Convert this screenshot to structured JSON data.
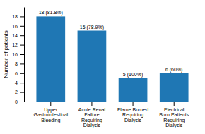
{
  "chart_data": {
    "type": "bar",
    "categories": [
      "Upper\nGastrointestinal\nBleeding",
      "Acute Renal\nFailure\nRequiring\nDialysis",
      "Flame Burned\nRequiring\nDialysis",
      "Electrical\nBurn Patients\nRequiring\nDialysis"
    ],
    "values": [
      18,
      15,
      5,
      6
    ],
    "value_labels": [
      "18 (81.8%)",
      "15 (78.9%)",
      "5 (100%)",
      "6 (60%)"
    ],
    "data_labels": true,
    "ylabel": "Number of patients",
    "ylim": [
      0,
      20
    ],
    "yticks": [
      0,
      2,
      4,
      6,
      8,
      10,
      12,
      14,
      16,
      18
    ],
    "grid": false
  }
}
